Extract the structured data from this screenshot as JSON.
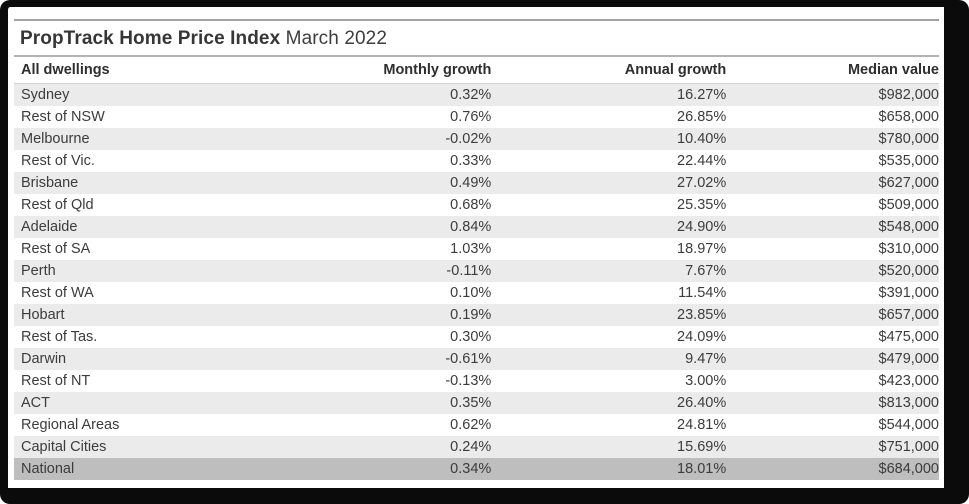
{
  "header": {
    "title_bold": "PropTrack Home Price Index",
    "title_period": "March 2022"
  },
  "chart_data": {
    "type": "table",
    "title": "PropTrack Home Price Index March 2022",
    "columns": [
      "All dwellings",
      "Monthly growth",
      "Annual growth",
      "Median value"
    ],
    "rows": [
      {
        "region": "Sydney",
        "monthly": "0.32%",
        "annual": "16.27%",
        "median": "$982,000",
        "highlight": false
      },
      {
        "region": "Rest of NSW",
        "monthly": "0.76%",
        "annual": "26.85%",
        "median": "$658,000",
        "highlight": false
      },
      {
        "region": "Melbourne",
        "monthly": "-0.02%",
        "annual": "10.40%",
        "median": "$780,000",
        "highlight": false
      },
      {
        "region": "Rest of Vic.",
        "monthly": "0.33%",
        "annual": "22.44%",
        "median": "$535,000",
        "highlight": false
      },
      {
        "region": "Brisbane",
        "monthly": "0.49%",
        "annual": "27.02%",
        "median": "$627,000",
        "highlight": false
      },
      {
        "region": "Rest of Qld",
        "monthly": "0.68%",
        "annual": "25.35%",
        "median": "$509,000",
        "highlight": false
      },
      {
        "region": "Adelaide",
        "monthly": "0.84%",
        "annual": "24.90%",
        "median": "$548,000",
        "highlight": false
      },
      {
        "region": "Rest of SA",
        "monthly": "1.03%",
        "annual": "18.97%",
        "median": "$310,000",
        "highlight": false
      },
      {
        "region": "Perth",
        "monthly": "-0.11%",
        "annual": "7.67%",
        "median": "$520,000",
        "highlight": false
      },
      {
        "region": "Rest of WA",
        "monthly": "0.10%",
        "annual": "11.54%",
        "median": "$391,000",
        "highlight": false
      },
      {
        "region": "Hobart",
        "monthly": "0.19%",
        "annual": "23.85%",
        "median": "$657,000",
        "highlight": false
      },
      {
        "region": "Rest of Tas.",
        "monthly": "0.30%",
        "annual": "24.09%",
        "median": "$475,000",
        "highlight": false
      },
      {
        "region": "Darwin",
        "monthly": "-0.61%",
        "annual": "9.47%",
        "median": "$479,000",
        "highlight": false
      },
      {
        "region": "Rest of NT",
        "monthly": "-0.13%",
        "annual": "3.00%",
        "median": "$423,000",
        "highlight": false
      },
      {
        "region": "ACT",
        "monthly": "0.35%",
        "annual": "26.40%",
        "median": "$813,000",
        "highlight": false
      },
      {
        "region": "Regional Areas",
        "monthly": "0.62%",
        "annual": "24.81%",
        "median": "$544,000",
        "highlight": false
      },
      {
        "region": "Capital Cities",
        "monthly": "0.24%",
        "annual": "15.69%",
        "median": "$751,000",
        "highlight": false
      },
      {
        "region": "National",
        "monthly": "0.34%",
        "annual": "18.01%",
        "median": "$684,000",
        "highlight": true
      }
    ],
    "layout": {
      "row_shading": "alternating",
      "shaded_row_color": "#ebebeb",
      "highlight_row_color": "#bebebe",
      "frame_color": "#0b0b0b",
      "text_color": "#3c3c3c"
    }
  }
}
